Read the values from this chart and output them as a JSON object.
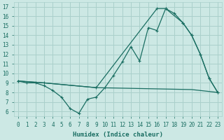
{
  "xlabel": "Humidex (Indice chaleur)",
  "bg_color": "#cce8e4",
  "grid_color": "#aad0cb",
  "line_color": "#1a6e62",
  "xlim": [
    -0.5,
    23.5
  ],
  "ylim": [
    5.5,
    17.5
  ],
  "xticks": [
    0,
    1,
    2,
    3,
    4,
    5,
    6,
    7,
    8,
    9,
    10,
    11,
    12,
    13,
    14,
    15,
    16,
    17,
    18,
    19,
    20,
    21,
    22,
    23
  ],
  "yticks": [
    6,
    7,
    8,
    9,
    10,
    11,
    12,
    13,
    14,
    15,
    16,
    17
  ],
  "line1_x": [
    0,
    1,
    2,
    3,
    4,
    5,
    6,
    7,
    8,
    9,
    10,
    11,
    12,
    13,
    14,
    15,
    16,
    17,
    18,
    19,
    20,
    21,
    22,
    23
  ],
  "line1_y": [
    9.2,
    9.0,
    9.0,
    8.7,
    8.2,
    7.5,
    6.3,
    5.8,
    7.3,
    7.5,
    8.5,
    9.8,
    11.2,
    12.8,
    11.3,
    14.8,
    14.5,
    16.8,
    16.3,
    15.3,
    14.0,
    12.0,
    9.5,
    8.0
  ],
  "line2_x": [
    0,
    3,
    9,
    16,
    17,
    19,
    20,
    21,
    22,
    23
  ],
  "line2_y": [
    9.2,
    9.0,
    8.5,
    16.8,
    16.8,
    15.3,
    14.0,
    12.0,
    9.5,
    8.0
  ],
  "line3_x": [
    0,
    3,
    9,
    20,
    23
  ],
  "line3_y": [
    9.2,
    9.0,
    8.5,
    8.3,
    8.0
  ]
}
